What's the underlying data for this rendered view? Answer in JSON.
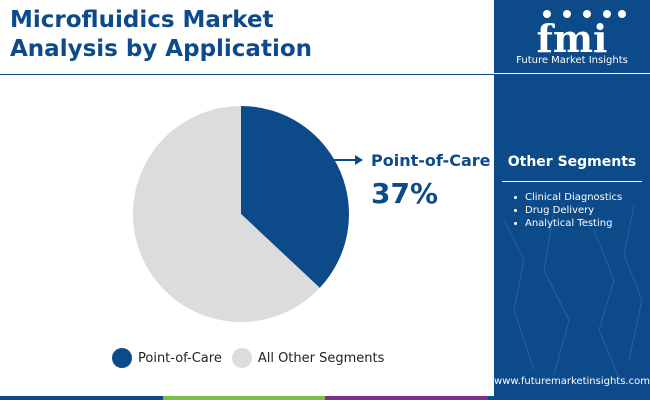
{
  "title": {
    "line1": "Microfluidics Market",
    "line2": "Analysis by Application"
  },
  "brand": {
    "logo_letters": "fmi",
    "name": "Future Market Insights",
    "website": "www.futuremarketinsights.com"
  },
  "side_panel": {
    "heading": "Other Segments",
    "items": [
      "Clinical Diagnostics",
      "Drug Delivery",
      "Analytical Testing"
    ]
  },
  "callout": {
    "label": "Point-of-Care",
    "value": "37%"
  },
  "legend": [
    {
      "label": "Point-of-Care",
      "color": "#0d4a8a"
    },
    {
      "label": "All Other Segments",
      "color": "#dcdcdc"
    }
  ],
  "colors": {
    "brand_blue": "#0d4a8a",
    "other_gray": "#dcdcdc",
    "bottom_bar": [
      "#0d4a8a",
      "#7cc043",
      "#7a2f8f",
      "#0d4a8a"
    ]
  },
  "chart_data": {
    "type": "pie",
    "slices": [
      {
        "label": "Point-of-Care",
        "value": 37,
        "color": "#0d4a8a"
      },
      {
        "label": "All Other Segments",
        "value": 63,
        "color": "#dcdcdc"
      }
    ],
    "start_angle_deg": 0,
    "direction": "clockwise",
    "legend_position": "bottom"
  }
}
